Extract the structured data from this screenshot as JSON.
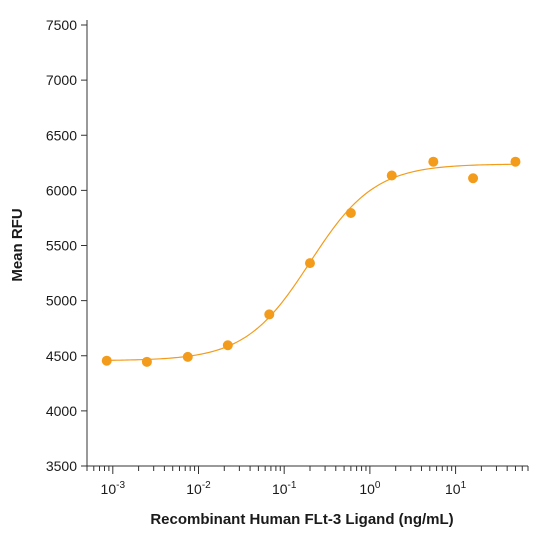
{
  "chart_data": {
    "type": "scatter",
    "title": "",
    "xlabel": "Recombinant Human FLt-3 Ligand (ng/mL)",
    "ylabel": "Mean RFU",
    "x_scale": "log",
    "xlim": [
      0.0005,
      70
    ],
    "ylim": [
      3500,
      7500
    ],
    "y_ticks": [
      3500,
      4000,
      4500,
      5000,
      5500,
      6000,
      6500,
      7000,
      7500
    ],
    "x_ticks": [
      0.001,
      0.01,
      0.1,
      1,
      10
    ],
    "x_tick_labels": [
      {
        "base": "10",
        "exp": "-3"
      },
      {
        "base": "10",
        "exp": "-2"
      },
      {
        "base": "10",
        "exp": "-1"
      },
      {
        "base": "10",
        "exp": "0"
      },
      {
        "base": "10",
        "exp": "1"
      }
    ],
    "grid": false,
    "color": "#f39c1c",
    "series": [
      {
        "points": [
          {
            "x": 0.00085,
            "y": 4455
          },
          {
            "x": 0.0025,
            "y": 4445
          },
          {
            "x": 0.0075,
            "y": 4490
          },
          {
            "x": 0.022,
            "y": 4595
          },
          {
            "x": 0.067,
            "y": 4875
          },
          {
            "x": 0.2,
            "y": 5340
          },
          {
            "x": 0.6,
            "y": 5795
          },
          {
            "x": 1.8,
            "y": 6135
          },
          {
            "x": 5.5,
            "y": 6260
          },
          {
            "x": 16,
            "y": 6110
          },
          {
            "x": 50,
            "y": 6260
          }
        ],
        "fit": {
          "type": "4PL",
          "bottom": 4455,
          "top": 6240,
          "ec50": 0.2,
          "hill": 1.15
        }
      }
    ]
  }
}
